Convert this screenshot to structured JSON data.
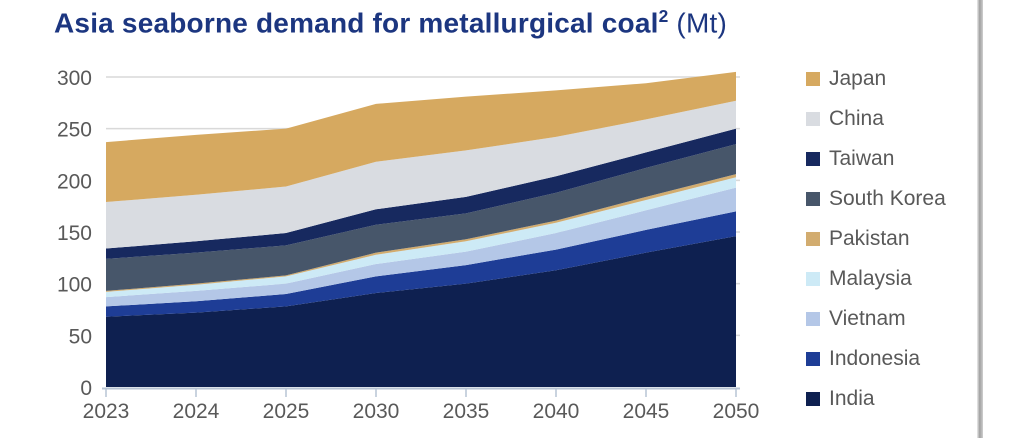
{
  "title": {
    "main": "Asia seaborne demand for metallurgical coal",
    "superscript": "2",
    "unit": " (Mt)"
  },
  "colors": {
    "title_text": "#1C3680",
    "axis_text": "#595959",
    "gridline": "#D9D9D9",
    "axis_line": "#B7C4D4",
    "background": "#FFFFFF",
    "divider": "#9F9F9F"
  },
  "chart_data": {
    "type": "area",
    "stacked": true,
    "title": "Asia seaborne demand for metallurgical coal2 (Mt)",
    "xlabel": "",
    "ylabel": "Mt",
    "ylim": [
      0,
      300
    ],
    "yticks": [
      0,
      50,
      100,
      150,
      200,
      250,
      300
    ],
    "grid": "horizontal",
    "legend_position": "right",
    "legend_order_top_to_bottom": [
      "Japan",
      "China",
      "Taiwan",
      "South Korea",
      "Pakistan",
      "Malaysia",
      "Vietnam",
      "Indonesia",
      "India"
    ],
    "categories": [
      "2023",
      "2024",
      "2025",
      "2030",
      "2035",
      "2040",
      "2045",
      "2050"
    ],
    "series": [
      {
        "name": "India",
        "color": "#0E2050",
        "values": [
          68,
          72,
          78,
          91,
          100,
          113,
          130,
          146
        ]
      },
      {
        "name": "Indonesia",
        "color": "#1E3D96",
        "values": [
          10,
          11,
          12,
          16,
          18,
          20,
          22,
          24
        ]
      },
      {
        "name": "Vietnam",
        "color": "#B4C7E7",
        "values": [
          9,
          10,
          10,
          12,
          13,
          16,
          19,
          23
        ]
      },
      {
        "name": "Malaysia",
        "color": "#CDEAF6",
        "values": [
          5,
          6,
          7,
          9,
          10,
          10,
          10,
          10
        ]
      },
      {
        "name": "Pakistan",
        "color": "#D2AC6F",
        "values": [
          1,
          1,
          1,
          2,
          2,
          2,
          3,
          3
        ]
      },
      {
        "name": "South Korea",
        "color": "#47566A",
        "values": [
          31,
          30,
          29,
          27,
          25,
          27,
          28,
          29
        ]
      },
      {
        "name": "Taiwan",
        "color": "#17295F",
        "values": [
          10,
          11,
          12,
          15,
          16,
          16,
          15,
          15
        ]
      },
      {
        "name": "China",
        "color": "#D9DCE1",
        "values": [
          45,
          45,
          45,
          46,
          45,
          38,
          32,
          27
        ]
      },
      {
        "name": "Japan",
        "color": "#D6A960",
        "values": [
          58,
          58,
          56,
          56,
          52,
          45,
          35,
          28
        ]
      }
    ],
    "totals": [
      237,
      244,
      250,
      274,
      281,
      287,
      294,
      305
    ]
  }
}
